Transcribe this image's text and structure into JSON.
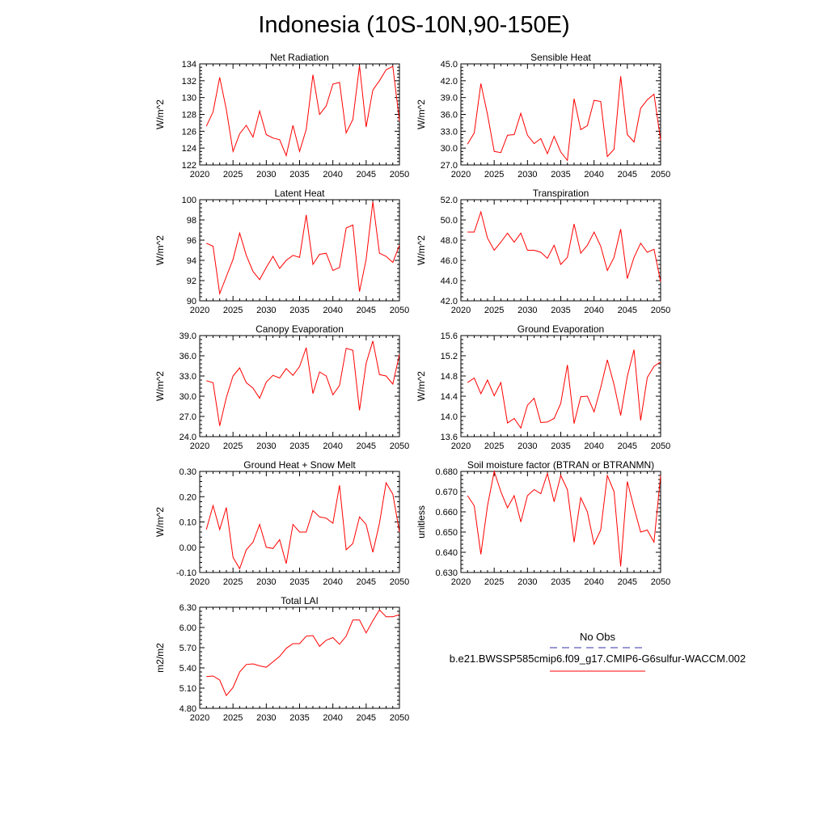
{
  "figure": {
    "title": "Indonesia (10S-10N,90-150E)"
  },
  "legend": {
    "items": [
      {
        "label": "No Obs",
        "color": "#3333aa",
        "dash": true
      },
      {
        "label": "b.e21.BWSSP585cmip6.f09_g17.CMIP6-G6sulfur-WACCM.002",
        "color": "#ff0000",
        "dash": false
      }
    ]
  },
  "chart_data": [
    {
      "type": "line",
      "title": "Net Radiation",
      "ylabel": "W/m^2",
      "xlim": [
        2020,
        2050
      ],
      "ylim": [
        122,
        134
      ],
      "xticks": [
        2020,
        2025,
        2030,
        2035,
        2040,
        2045,
        2050
      ],
      "yticks": [
        "122",
        "124",
        "126",
        "128",
        "130",
        "132",
        "134"
      ],
      "series": [
        {
          "color": "#ff0000",
          "x": [
            2021,
            2022,
            2023,
            2024,
            2025,
            2026,
            2027,
            2028,
            2029,
            2030,
            2031,
            2032,
            2033,
            2034,
            2035,
            2036,
            2037,
            2038,
            2039,
            2040,
            2041,
            2042,
            2043,
            2044,
            2045,
            2046,
            2047,
            2048,
            2049,
            2050
          ],
          "values": [
            126.6,
            128.3,
            132.4,
            128.6,
            123.6,
            125.7,
            126.7,
            125.3,
            128.4,
            125.6,
            125.2,
            125.0,
            123.1,
            126.7,
            123.6,
            126.2,
            132.7,
            128.0,
            129.0,
            131.6,
            131.8,
            125.8,
            127.4,
            133.8,
            126.5,
            130.9,
            132.0,
            133.3,
            133.7,
            127.2
          ]
        }
      ]
    },
    {
      "type": "line",
      "title": "Sensible Heat",
      "ylabel": "W/m^2",
      "xlim": [
        2020,
        2050
      ],
      "ylim": [
        27,
        45
      ],
      "xticks": [
        2020,
        2025,
        2030,
        2035,
        2040,
        2045,
        2050
      ],
      "yticks": [
        "27.0",
        "30.0",
        "33.0",
        "36.0",
        "39.0",
        "42.0",
        "45.0"
      ],
      "series": [
        {
          "color": "#ff0000",
          "x": [
            2021,
            2022,
            2023,
            2024,
            2025,
            2026,
            2027,
            2028,
            2029,
            2030,
            2031,
            2032,
            2033,
            2034,
            2035,
            2036,
            2037,
            2038,
            2039,
            2040,
            2041,
            2042,
            2043,
            2044,
            2045,
            2046,
            2047,
            2048,
            2049,
            2050
          ],
          "values": [
            30.7,
            32.7,
            41.5,
            36.0,
            29.4,
            29.2,
            32.3,
            32.4,
            36.2,
            32.3,
            30.8,
            31.7,
            29.0,
            32.1,
            29.3,
            27.8,
            38.8,
            33.3,
            34.0,
            38.5,
            38.3,
            28.5,
            29.8,
            42.8,
            32.4,
            31.1,
            37.1,
            38.6,
            39.6,
            31.4
          ]
        }
      ]
    },
    {
      "type": "line",
      "title": "Latent Heat",
      "ylabel": "W/m^2",
      "xlim": [
        2020,
        2050
      ],
      "ylim": [
        90,
        100
      ],
      "xticks": [
        2020,
        2025,
        2030,
        2035,
        2040,
        2045,
        2050
      ],
      "yticks": [
        "90",
        "92",
        "94",
        "96",
        "98",
        "100"
      ],
      "series": [
        {
          "color": "#ff0000",
          "x": [
            2021,
            2022,
            2023,
            2024,
            2025,
            2026,
            2027,
            2028,
            2029,
            2030,
            2031,
            2032,
            2033,
            2034,
            2035,
            2036,
            2037,
            2038,
            2039,
            2040,
            2041,
            2042,
            2043,
            2044,
            2045,
            2046,
            2047,
            2048,
            2049,
            2050
          ],
          "values": [
            95.7,
            95.4,
            90.7,
            92.4,
            94.1,
            96.7,
            94.5,
            92.9,
            92.1,
            93.3,
            94.4,
            93.2,
            94.0,
            94.5,
            94.3,
            98.5,
            93.6,
            94.6,
            94.7,
            93.0,
            93.3,
            97.2,
            97.5,
            90.9,
            94.1,
            99.8,
            94.7,
            94.4,
            93.8,
            95.5
          ]
        }
      ]
    },
    {
      "type": "line",
      "title": "Transpiration",
      "ylabel": "W/m^2",
      "xlim": [
        2020,
        2050
      ],
      "ylim": [
        42,
        52
      ],
      "xticks": [
        2020,
        2025,
        2030,
        2035,
        2040,
        2045,
        2050
      ],
      "yticks": [
        "42.0",
        "44.0",
        "46.0",
        "48.0",
        "50.0",
        "52.0"
      ],
      "series": [
        {
          "color": "#ff0000",
          "x": [
            2021,
            2022,
            2023,
            2024,
            2025,
            2026,
            2027,
            2028,
            2029,
            2030,
            2031,
            2032,
            2033,
            2034,
            2035,
            2036,
            2037,
            2038,
            2039,
            2040,
            2041,
            2042,
            2043,
            2044,
            2045,
            2046,
            2047,
            2048,
            2049,
            2050
          ],
          "values": [
            48.8,
            48.8,
            50.8,
            48.2,
            47.0,
            47.8,
            48.7,
            47.8,
            48.7,
            47.0,
            47.0,
            46.8,
            46.2,
            47.5,
            45.6,
            46.3,
            49.6,
            46.7,
            47.5,
            48.8,
            47.4,
            45.0,
            46.3,
            49.1,
            44.2,
            46.3,
            47.7,
            46.8,
            47.1,
            43.9
          ]
        }
      ]
    },
    {
      "type": "line",
      "title": "Canopy Evaporation",
      "ylabel": "W/m^2",
      "xlim": [
        2020,
        2050
      ],
      "ylim": [
        24,
        39
      ],
      "xticks": [
        2020,
        2025,
        2030,
        2035,
        2040,
        2045,
        2050
      ],
      "yticks": [
        "24.0",
        "27.0",
        "30.0",
        "33.0",
        "36.0",
        "39.0"
      ],
      "series": [
        {
          "color": "#ff0000",
          "x": [
            2021,
            2022,
            2023,
            2024,
            2025,
            2026,
            2027,
            2028,
            2029,
            2030,
            2031,
            2032,
            2033,
            2034,
            2035,
            2036,
            2037,
            2038,
            2039,
            2040,
            2041,
            2042,
            2043,
            2044,
            2045,
            2046,
            2047,
            2048,
            2049,
            2050
          ],
          "values": [
            32.3,
            32.0,
            25.6,
            29.8,
            33.0,
            34.2,
            32.0,
            31.2,
            29.7,
            32.1,
            33.1,
            32.7,
            34.1,
            33.1,
            34.4,
            37.2,
            30.4,
            33.6,
            33.0,
            30.2,
            31.6,
            37.1,
            36.8,
            27.9,
            34.9,
            38.2,
            33.2,
            33.0,
            31.8,
            36.2
          ]
        }
      ]
    },
    {
      "type": "line",
      "title": "Ground Evaporation",
      "ylabel": "W/m^2",
      "xlim": [
        2020,
        2050
      ],
      "ylim": [
        13.6,
        15.6
      ],
      "xticks": [
        2020,
        2025,
        2030,
        2035,
        2040,
        2045,
        2050
      ],
      "yticks": [
        "13.6",
        "14.0",
        "14.4",
        "14.8",
        "15.2",
        "15.6"
      ],
      "series": [
        {
          "color": "#ff0000",
          "x": [
            2021,
            2022,
            2023,
            2024,
            2025,
            2026,
            2027,
            2028,
            2029,
            2030,
            2031,
            2032,
            2033,
            2034,
            2035,
            2036,
            2037,
            2038,
            2039,
            2040,
            2041,
            2042,
            2043,
            2044,
            2045,
            2046,
            2047,
            2048,
            2049,
            2050
          ],
          "values": [
            14.67,
            14.76,
            14.45,
            14.72,
            14.41,
            14.67,
            13.87,
            13.96,
            13.77,
            14.22,
            14.36,
            13.88,
            13.89,
            13.96,
            14.26,
            15.02,
            13.86,
            14.39,
            14.4,
            14.09,
            14.57,
            15.12,
            14.63,
            14.02,
            14.79,
            15.32,
            13.92,
            14.77,
            14.99,
            15.08
          ]
        }
      ]
    },
    {
      "type": "line",
      "title": "Ground Heat + Snow Melt",
      "ylabel": "W/m^2",
      "xlim": [
        2020,
        2050
      ],
      "ylim": [
        -0.1,
        0.3
      ],
      "xticks": [
        2020,
        2025,
        2030,
        2035,
        2040,
        2045,
        2050
      ],
      "yticks": [
        "-0.10",
        "0.00",
        "0.10",
        "0.20",
        "0.30"
      ],
      "series": [
        {
          "color": "#ff0000",
          "x": [
            2021,
            2022,
            2023,
            2024,
            2025,
            2026,
            2027,
            2028,
            2029,
            2030,
            2031,
            2032,
            2033,
            2034,
            2035,
            2036,
            2037,
            2038,
            2039,
            2040,
            2041,
            2042,
            2043,
            2044,
            2045,
            2046,
            2047,
            2048,
            2049,
            2050
          ],
          "values": [
            0.07,
            0.165,
            0.07,
            0.157,
            -0.04,
            -0.085,
            -0.01,
            0.02,
            0.09,
            0.0,
            -0.005,
            0.03,
            -0.065,
            0.09,
            0.06,
            0.06,
            0.145,
            0.12,
            0.115,
            0.095,
            0.245,
            -0.01,
            0.015,
            0.12,
            0.09,
            -0.02,
            0.095,
            0.255,
            0.21,
            0.06
          ]
        }
      ]
    },
    {
      "type": "line",
      "title": "Soil moisture factor (BTRAN or BTRANMN)",
      "ylabel": "unitless",
      "xlim": [
        2020,
        2050
      ],
      "ylim": [
        0.63,
        0.68
      ],
      "xticks": [
        2020,
        2025,
        2030,
        2035,
        2040,
        2045,
        2050
      ],
      "yticks": [
        "0.630",
        "0.640",
        "0.650",
        "0.660",
        "0.670",
        "0.680"
      ],
      "series": [
        {
          "color": "#ff0000",
          "x": [
            2021,
            2022,
            2023,
            2024,
            2025,
            2026,
            2027,
            2028,
            2029,
            2030,
            2031,
            2032,
            2033,
            2034,
            2035,
            2036,
            2037,
            2038,
            2039,
            2040,
            2041,
            2042,
            2043,
            2044,
            2045,
            2046,
            2047,
            2048,
            2049,
            2050
          ],
          "values": [
            0.668,
            0.663,
            0.639,
            0.663,
            0.68,
            0.67,
            0.662,
            0.668,
            0.655,
            0.668,
            0.671,
            0.669,
            0.679,
            0.665,
            0.678,
            0.671,
            0.645,
            0.667,
            0.66,
            0.644,
            0.651,
            0.678,
            0.67,
            0.633,
            0.675,
            0.662,
            0.65,
            0.651,
            0.645,
            0.678
          ]
        }
      ]
    },
    {
      "type": "line",
      "title": "Total LAI",
      "ylabel": "m2/m2",
      "xlim": [
        2020,
        2050
      ],
      "ylim": [
        4.8,
        6.3
      ],
      "xticks": [
        2020,
        2025,
        2030,
        2035,
        2040,
        2045,
        2050
      ],
      "yticks": [
        "4.80",
        "5.10",
        "5.40",
        "5.70",
        "6.00",
        "6.30"
      ],
      "series": [
        {
          "color": "#ff0000",
          "x": [
            2021,
            2022,
            2023,
            2024,
            2025,
            2026,
            2027,
            2028,
            2029,
            2030,
            2031,
            2032,
            2033,
            2034,
            2035,
            2036,
            2037,
            2038,
            2039,
            2040,
            2041,
            2042,
            2043,
            2044,
            2045,
            2046,
            2047,
            2048,
            2049,
            2050
          ],
          "values": [
            5.27,
            5.28,
            5.22,
            4.99,
            5.11,
            5.34,
            5.45,
            5.46,
            5.43,
            5.41,
            5.49,
            5.57,
            5.69,
            5.76,
            5.76,
            5.87,
            5.88,
            5.72,
            5.81,
            5.85,
            5.75,
            5.87,
            6.11,
            6.11,
            5.92,
            6.1,
            6.26,
            6.16,
            6.16,
            6.19
          ]
        }
      ]
    }
  ]
}
